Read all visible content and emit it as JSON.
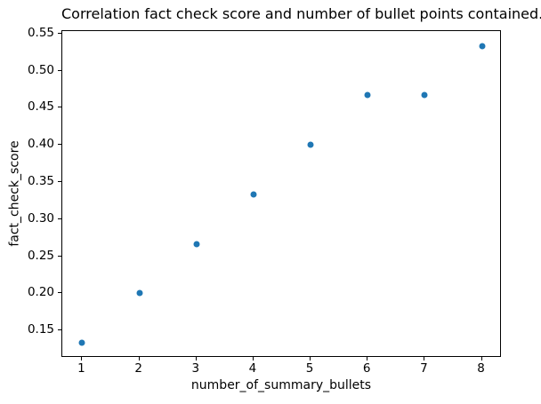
{
  "chart_data": {
    "type": "scatter",
    "title": "Correlation fact check score and number of bullet points contained.",
    "xlabel": "number_of_summary_bullets",
    "ylabel": "fact_check_score",
    "x": [
      1,
      2,
      3,
      4,
      5,
      6,
      7,
      8
    ],
    "y": [
      0.1333,
      0.2,
      0.2667,
      0.3333,
      0.4,
      0.4667,
      0.4667,
      0.5333
    ],
    "xlim": [
      0.65,
      8.35
    ],
    "ylim": [
      0.1133,
      0.5533
    ],
    "xticks": [
      1,
      2,
      3,
      4,
      5,
      6,
      7,
      8
    ],
    "xtick_labels": [
      "1",
      "2",
      "3",
      "4",
      "5",
      "6",
      "7",
      "8"
    ],
    "yticks": [
      0.15,
      0.2,
      0.25,
      0.3,
      0.35,
      0.4,
      0.45,
      0.5,
      0.55
    ],
    "ytick_labels": [
      "0.15",
      "0.20",
      "0.25",
      "0.30",
      "0.35",
      "0.40",
      "0.45",
      "0.50",
      "0.55"
    ],
    "grid": false,
    "legend": null,
    "marker_color": "#1f77b4",
    "background_color": "#ffffff",
    "spine_color": "#000000"
  }
}
